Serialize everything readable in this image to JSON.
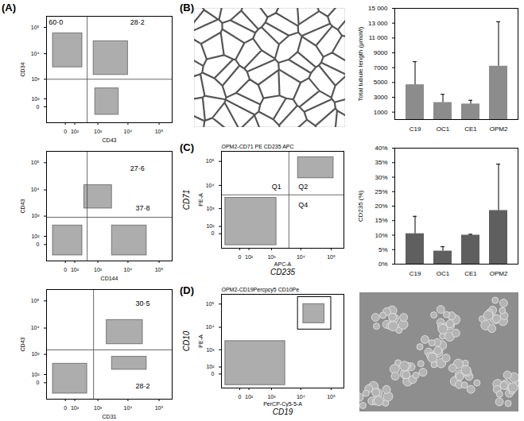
{
  "panel_labels": [
    "(A)",
    "(B)",
    "(C)",
    "(D)"
  ],
  "chart_data": [
    {
      "type": "flow",
      "xlabel": "CD43",
      "ylabel": "CD34",
      "log": true,
      "xlim": [
        -300,
        262144
      ],
      "ylim": [
        -300,
        262144
      ],
      "xticks": [
        0,
        {
          "value": 100,
          "label": "10²"
        },
        {
          "value": 1000,
          "label": "10³"
        },
        {
          "value": 10000,
          "label": "10⁴"
        },
        {
          "value": 100000,
          "label": "10⁵"
        }
      ],
      "yticks": [
        0,
        {
          "value": 100,
          "label": "10²"
        },
        {
          "value": 1000,
          "label": "10³"
        },
        {
          "value": 10000,
          "label": "10⁴"
        },
        {
          "value": 100000,
          "label": "10⁵"
        }
      ],
      "populations": [
        {
          "x": [
            -150,
            250
          ],
          "y": [
            3000,
            60000
          ]
        },
        {
          "x": [
            700,
            10000
          ],
          "y": [
            1500,
            30000
          ]
        },
        {
          "x": [
            800,
            5000
          ],
          "y": [
            -100,
            400
          ]
        }
      ],
      "gate": {
        "x": 400,
        "y": 1000
      },
      "annotations": [
        {
          "text": "60·0",
          "x": -100,
          "y": 150000
        },
        {
          "text": "28·2",
          "x": 20000,
          "y": 150000
        }
      ]
    },
    {
      "type": "flow",
      "xlabel": "CD144",
      "ylabel": "CD43",
      "log": true,
      "xlim": [
        -300,
        262144
      ],
      "ylim": [
        -300,
        262144
      ],
      "xticks": [
        0,
        {
          "value": 100,
          "label": "10²"
        },
        {
          "value": 1000,
          "label": "10³"
        },
        {
          "value": 10000,
          "label": "10⁴"
        },
        {
          "value": 100000,
          "label": "10⁵"
        }
      ],
      "yticks": [
        0,
        {
          "value": 100,
          "label": "10²"
        },
        {
          "value": 1000,
          "label": "10³"
        },
        {
          "value": 10000,
          "label": "10⁴"
        },
        {
          "value": 100000,
          "label": "10⁵"
        }
      ],
      "populations": [
        {
          "x": [
            -150,
            250
          ],
          "y": [
            -150,
            400
          ]
        },
        {
          "x": [
            300,
            3000
          ],
          "y": [
            2000,
            15000
          ]
        },
        {
          "x": [
            3000,
            40000
          ],
          "y": [
            -150,
            400
          ]
        }
      ],
      "gate": {
        "x": 400,
        "y": 900
      },
      "annotations": [
        {
          "text": "27·6",
          "x": 20000,
          "y": 60000
        },
        {
          "text": "37·8",
          "x": 30000,
          "y": 2000
        }
      ]
    },
    {
      "type": "flow",
      "xlabel": "CD31",
      "ylabel": "CD43",
      "log": true,
      "xlim": [
        -300,
        262144
      ],
      "ylim": [
        -300,
        262144
      ],
      "xticks": [
        0,
        {
          "value": 100,
          "label": "10²"
        },
        {
          "value": 1000,
          "label": "10³"
        },
        {
          "value": 10000,
          "label": "10⁴"
        },
        {
          "value": 100000,
          "label": "10⁵"
        }
      ],
      "yticks": [
        0,
        {
          "value": 100,
          "label": "10²"
        },
        {
          "value": 1000,
          "label": "10³"
        },
        {
          "value": 10000,
          "label": "10⁴"
        },
        {
          "value": 100000,
          "label": "10⁵"
        }
      ],
      "populations": [
        {
          "x": [
            -150,
            400
          ],
          "y": [
            -150,
            400
          ]
        },
        {
          "x": [
            2000,
            30000
          ],
          "y": [
            2500,
            20000
          ]
        },
        {
          "x": [
            3000,
            40000
          ],
          "y": [
            200,
            800
          ]
        }
      ],
      "gate": {
        "x": 700,
        "y": 1500
      },
      "annotations": [
        {
          "text": "30·5",
          "x": 30000,
          "y": 80000
        },
        {
          "text": "28·2",
          "x": 30000,
          "y": -30
        }
      ]
    },
    {
      "type": "bar",
      "ylabel": "Total tubule length (μmol/l)",
      "categories": [
        "C19",
        "OC1",
        "CE1",
        "OPM2"
      ],
      "values": [
        4700,
        2300,
        2100,
        7200
      ],
      "errors": [
        3100,
        1100,
        500,
        6000
      ],
      "color": "#8c8c8c",
      "ylim": [
        0,
        15000
      ],
      "yticks": [
        1000,
        3000,
        5000,
        7000,
        9000,
        {
          "value": 11000,
          "label": "11 000"
        },
        {
          "value": 13000,
          "label": "13 000"
        },
        {
          "value": 15000,
          "label": "15 000"
        }
      ]
    },
    {
      "type": "flow",
      "title": "OPM2-CD71 PE CD235 APC",
      "xlabel": "APC-A",
      "ylabel": "PE-A",
      "x_marker": "CD235",
      "y_marker": "CD71",
      "log": true,
      "xlim": [
        -300,
        262144
      ],
      "ylim": [
        -300,
        262144
      ],
      "xticks": [
        0,
        {
          "value": 100,
          "label": "10²"
        },
        {
          "value": 1000,
          "label": "10³"
        },
        {
          "value": 10000,
          "label": "10⁴"
        },
        {
          "value": 100000,
          "label": "10⁵"
        }
      ],
      "yticks": [
        0,
        {
          "value": 100,
          "label": "10²"
        },
        {
          "value": 1000,
          "label": "10³"
        },
        {
          "value": 10000,
          "label": "10⁴"
        },
        {
          "value": 100000,
          "label": "10⁵"
        }
      ],
      "populations": [
        {
          "x": [
            -200,
            1500
          ],
          "y": [
            -200,
            3000
          ]
        },
        {
          "x": [
            8000,
            120000
          ],
          "y": [
            20000,
            150000
          ]
        }
      ],
      "gate": {
        "x": 4000,
        "y": 4000
      },
      "annotations": [
        {
          "text": "Q1",
          "x": 1500,
          "y": 9000
        },
        {
          "text": "Q2",
          "x": 12000,
          "y": 9000
        },
        {
          "text": "Q4",
          "x": 12000,
          "y": 1500
        }
      ]
    },
    {
      "type": "bar",
      "ylabel": "CD235 (%)",
      "categories": [
        "C19",
        "OC1",
        "CE1",
        "OPM2"
      ],
      "values": [
        10.5,
        4.5,
        10,
        18.5
      ],
      "errors": [
        6,
        1.5,
        0.3,
        16
      ],
      "color": "#5f5f5f",
      "ylim": [
        0,
        40
      ],
      "yticks": [
        {
          "value": 0,
          "label": "0%"
        },
        {
          "value": 5,
          "label": "5%"
        },
        {
          "value": 10,
          "label": "10%"
        },
        {
          "value": 15,
          "label": "15%"
        },
        {
          "value": 20,
          "label": "20%"
        },
        {
          "value": 25,
          "label": "25%"
        },
        {
          "value": 30,
          "label": "30%"
        },
        {
          "value": 35,
          "label": "35%"
        },
        {
          "value": 40,
          "label": "40%"
        }
      ]
    },
    {
      "type": "flow",
      "title": "OPM2-CD19Percpcy5 CD10Pe",
      "xlabel": "PerCP-Cy5-5-A",
      "ylabel": "PE-A",
      "x_marker": "CD19",
      "y_marker": "CD10",
      "log": true,
      "xlim": [
        -300,
        262144
      ],
      "ylim": [
        -300,
        262144
      ],
      "xticks": [
        0,
        {
          "value": 100,
          "label": "10²"
        },
        {
          "value": 1000,
          "label": "10³"
        },
        {
          "value": 10000,
          "label": "10⁴"
        },
        {
          "value": 100000,
          "label": "10⁵"
        }
      ],
      "yticks": [
        0,
        {
          "value": 100,
          "label": "10²"
        },
        {
          "value": 1000,
          "label": "10³"
        },
        {
          "value": 10000,
          "label": "10⁴"
        },
        {
          "value": 100000,
          "label": "10⁵"
        }
      ],
      "populations": [
        {
          "x": [
            -200,
            3000
          ],
          "y": [
            -200,
            2500
          ]
        },
        {
          "x": [
            12000,
            60000
          ],
          "y": [
            15000,
            100000
          ]
        }
      ],
      "gate_box": {
        "x": [
          8000,
          100000
        ],
        "y": [
          8000,
          200000
        ]
      }
    }
  ]
}
